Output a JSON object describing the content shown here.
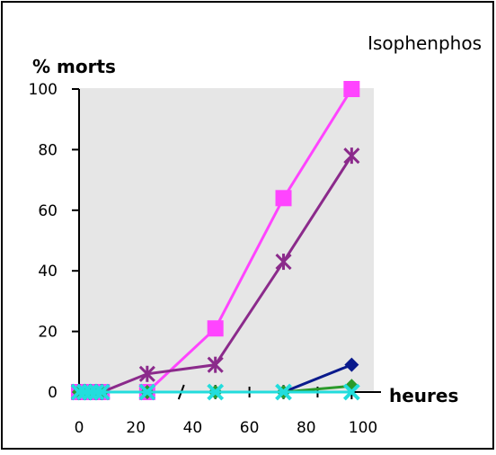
{
  "chart_data": {
    "type": "line",
    "title": "Isophenphos",
    "ylabel": "% morts",
    "xlabel": "heures",
    "xlim": [
      0,
      100
    ],
    "ylim": [
      0,
      100
    ],
    "x_ticks": [
      "0",
      "20",
      "40",
      "60",
      "80",
      "100"
    ],
    "y_ticks": [
      "0",
      "20",
      "40",
      "60",
      "80",
      "100"
    ],
    "grid": false,
    "legend": "none",
    "plot_background": "#e6e6e6",
    "series": [
      {
        "color": "#ff44ff",
        "marker": "square",
        "points": [
          [
            0,
            0
          ],
          [
            2,
            0
          ],
          [
            4,
            0
          ],
          [
            6,
            0
          ],
          [
            8,
            0
          ],
          [
            24,
            0
          ],
          [
            48,
            21
          ],
          [
            72,
            64
          ],
          [
            96,
            100
          ]
        ]
      },
      {
        "color": "#8b2a8b",
        "marker": "star",
        "points": [
          [
            0,
            0
          ],
          [
            2,
            0
          ],
          [
            4,
            0
          ],
          [
            6,
            0
          ],
          [
            8,
            0
          ],
          [
            24,
            6
          ],
          [
            48,
            9
          ],
          [
            72,
            43
          ],
          [
            96,
            78
          ]
        ]
      },
      {
        "color": "#0a1a8c",
        "marker": "diamond",
        "points": [
          [
            0,
            0
          ],
          [
            2,
            0
          ],
          [
            4,
            0
          ],
          [
            6,
            0
          ],
          [
            8,
            0
          ],
          [
            24,
            0
          ],
          [
            48,
            0
          ],
          [
            72,
            0
          ],
          [
            96,
            9
          ]
        ]
      },
      {
        "color": "#2a9a2a",
        "marker": "diamond",
        "points": [
          [
            0,
            0
          ],
          [
            2,
            0
          ],
          [
            4,
            0
          ],
          [
            6,
            0
          ],
          [
            8,
            0
          ],
          [
            24,
            0
          ],
          [
            48,
            0
          ],
          [
            72,
            0
          ],
          [
            96,
            2
          ]
        ]
      },
      {
        "color": "#22dddd",
        "marker": "x",
        "points": [
          [
            0,
            0
          ],
          [
            2,
            0
          ],
          [
            4,
            0
          ],
          [
            6,
            0
          ],
          [
            8,
            0
          ],
          [
            24,
            0
          ],
          [
            48,
            0
          ],
          [
            72,
            0
          ],
          [
            96,
            0
          ]
        ]
      }
    ]
  }
}
